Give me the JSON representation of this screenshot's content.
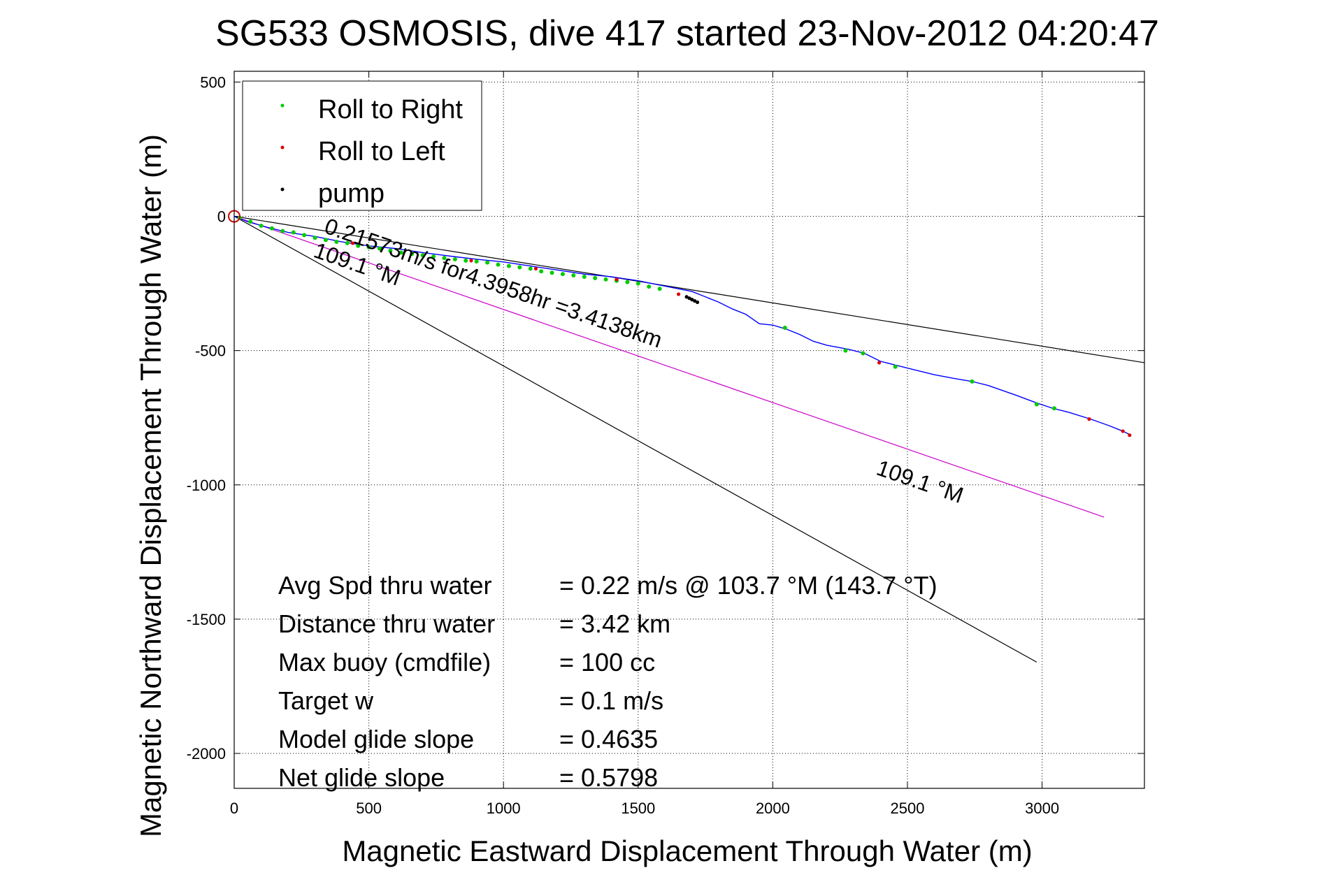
{
  "chart_data": {
    "type": "scatter",
    "title": "SG533 OSMOSIS, dive 417 started 23-Nov-2012 04:20:47",
    "xlabel": "Magnetic Eastward Displacement Through Water (m)",
    "ylabel": "Magnetic Northward Displacement Through Water (m)",
    "xlim": [
      0,
      3380
    ],
    "ylim": [
      -2130,
      540
    ],
    "xticks": [
      0,
      500,
      1000,
      1500,
      2000,
      2500,
      3000
    ],
    "yticks": [
      500,
      0,
      -500,
      -1000,
      -1500,
      -2000
    ],
    "grid": true,
    "legend": {
      "placement": "top-left",
      "entries": [
        {
          "label": "Roll to Right",
          "color": "#00cc00"
        },
        {
          "label": "Roll to Left",
          "color": "#dd0000"
        },
        {
          "label": "pump",
          "color": "#000000"
        }
      ]
    },
    "series": [
      {
        "name": "track",
        "color": "#0000ff",
        "x": [
          0,
          50,
          120,
          200,
          300,
          400,
          500,
          600,
          700,
          800,
          900,
          1000,
          1100,
          1200,
          1300,
          1400,
          1500,
          1600,
          1700,
          1750,
          1800,
          1850,
          1900,
          1950,
          2000,
          2050,
          2100,
          2150,
          2200,
          2280,
          2340,
          2400,
          2460,
          2520,
          2600,
          2680,
          2740,
          2800,
          2900,
          2980,
          3040,
          3100,
          3180,
          3250,
          3300,
          3330
        ],
        "y": [
          0,
          -20,
          -40,
          -60,
          -75,
          -95,
          -110,
          -120,
          -135,
          -148,
          -160,
          -170,
          -185,
          -200,
          -215,
          -225,
          -240,
          -260,
          -280,
          -300,
          -320,
          -345,
          -365,
          -400,
          -405,
          -420,
          -440,
          -465,
          -480,
          -495,
          -510,
          -540,
          -555,
          -570,
          -590,
          -605,
          -615,
          -630,
          -665,
          -695,
          -715,
          -730,
          -755,
          -780,
          -800,
          -815
        ]
      },
      {
        "name": "Roll to Right",
        "color": "#00cc00",
        "x": [
          20,
          60,
          100,
          140,
          180,
          220,
          260,
          300,
          340,
          380,
          420,
          460,
          500,
          540,
          580,
          620,
          660,
          700,
          740,
          780,
          820,
          860,
          900,
          940,
          980,
          1020,
          1060,
          1100,
          1140,
          1180,
          1220,
          1260,
          1300,
          1340,
          1380,
          1420,
          1460,
          1500,
          1540,
          1580,
          2045,
          2270,
          2335,
          2455,
          2740,
          2980,
          3045
        ],
        "y": [
          -5,
          -20,
          -35,
          -45,
          -55,
          -60,
          -70,
          -80,
          -88,
          -95,
          -100,
          -110,
          -115,
          -120,
          -128,
          -135,
          -140,
          -145,
          -150,
          -155,
          -160,
          -165,
          -168,
          -172,
          -180,
          -185,
          -190,
          -195,
          -205,
          -210,
          -215,
          -220,
          -225,
          -230,
          -235,
          -240,
          -245,
          -250,
          -262,
          -270,
          -415,
          -500,
          -510,
          -560,
          -615,
          -700,
          -715
        ]
      },
      {
        "name": "Roll to Left",
        "color": "#dd0000",
        "x": [
          440,
          880,
          1120,
          1420,
          1650,
          2395,
          3175,
          3300,
          3325
        ],
        "y": [
          -100,
          -165,
          -195,
          -235,
          -290,
          -545,
          -755,
          -800,
          -815
        ]
      },
      {
        "name": "pump",
        "color": "#000000",
        "x": [
          1680,
          1690,
          1700,
          1710,
          1720
        ],
        "y": [
          -300,
          -305,
          -310,
          -315,
          -320
        ]
      }
    ],
    "reference_lines": [
      {
        "color": "#000000",
        "x": [
          0,
          3380
        ],
        "y": [
          0,
          -545
        ]
      },
      {
        "color": "#000000",
        "x": [
          0,
          2980
        ],
        "y": [
          0,
          -1660
        ]
      },
      {
        "color": "#cc00cc",
        "x": [
          0,
          3230
        ],
        "y": [
          0,
          -1120
        ]
      }
    ],
    "annotations": [
      {
        "text": "0.21573m/s for4.3958hr =3.4138km",
        "x": 330,
        "y": -60,
        "rotate": 19
      },
      {
        "text": "109.1 °M",
        "x": 290,
        "y": -150,
        "rotate": 19
      },
      {
        "text": "109.1 °M",
        "x": 2380,
        "y": -960,
        "rotate": 19
      }
    ],
    "stats": [
      {
        "label": "Avg Spd thru water",
        "value": "=  0.22 m/s @ 103.7 °M (143.7 °T)"
      },
      {
        "label": "Distance thru water",
        "value": "=  3.42 km"
      },
      {
        "label": "Max buoy (cmdfile)",
        "value": "= 100 cc"
      },
      {
        "label": "Target w",
        "value": "= 0.1 m/s"
      },
      {
        "label": "Model glide slope",
        "value": "= 0.4635"
      },
      {
        "label": "Net glide slope",
        "value": "= 0.5798"
      }
    ]
  }
}
